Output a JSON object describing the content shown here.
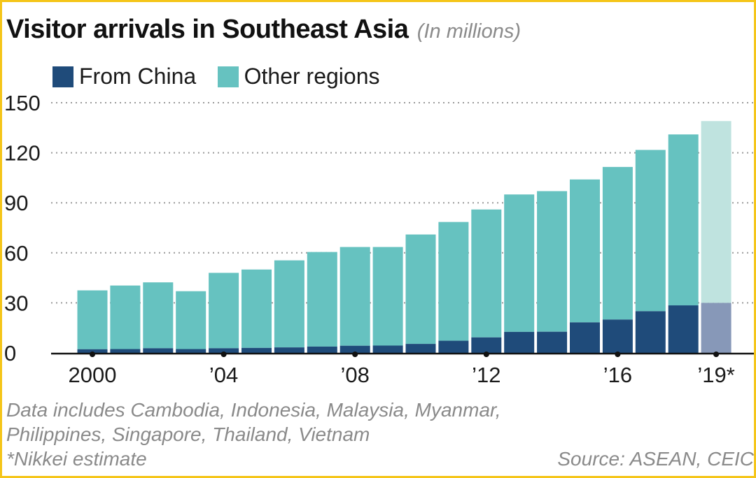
{
  "header": {
    "title": "Visitor arrivals in Southeast Asia",
    "subtitle": "(In millions)"
  },
  "legend": {
    "from_china": "From China",
    "other_regions": "Other regions"
  },
  "colors": {
    "from_china": "#1F4B7A",
    "other_regions": "#66C2C0",
    "from_china_estimate": "#8798B8",
    "other_regions_estimate": "#BFE3DF",
    "frame": "#F5C518",
    "gridline": "#9a9a9a"
  },
  "chart_data": {
    "type": "bar",
    "stacked": true,
    "years": [
      2000,
      2001,
      2002,
      2003,
      2004,
      2005,
      2006,
      2007,
      2008,
      2009,
      2010,
      2011,
      2012,
      2013,
      2014,
      2015,
      2016,
      2017,
      2018,
      2019
    ],
    "x_tick_labels": [
      {
        "year": 2000,
        "label": "2000"
      },
      {
        "year": 2004,
        "label": "’04"
      },
      {
        "year": 2008,
        "label": "’08"
      },
      {
        "year": 2012,
        "label": "’12"
      },
      {
        "year": 2016,
        "label": "’16"
      },
      {
        "year": 2019,
        "label": "’19*"
      }
    ],
    "estimate_year": 2019,
    "series": [
      {
        "name": "From China",
        "values": [
          2.2,
          2.3,
          2.8,
          2.3,
          2.8,
          3.0,
          3.3,
          3.8,
          4.3,
          4.4,
          5.4,
          7.3,
          9.3,
          12.6,
          12.7,
          18.3,
          20.0,
          25.0,
          28.5,
          30.0
        ]
      },
      {
        "name": "Other regions",
        "values": [
          35.3,
          38.1,
          39.5,
          34.7,
          45.2,
          47.0,
          52.2,
          56.7,
          59.2,
          59.1,
          65.6,
          71.2,
          76.7,
          82.4,
          84.3,
          85.7,
          91.5,
          96.7,
          102.5,
          109.0
        ]
      }
    ],
    "y_ticks": [
      0,
      30,
      60,
      90,
      120,
      150
    ],
    "ylim": [
      0,
      150
    ],
    "grid": true,
    "legend_position": "top-left"
  },
  "footnotes": {
    "note_line1": "Data includes Cambodia, Indonesia, Malaysia, Myanmar,",
    "note_line2": "Philippines, Singapore, Thailand, Vietnam",
    "note_line3": "*Nikkei estimate",
    "source": "Source: ASEAN, CEIC"
  }
}
